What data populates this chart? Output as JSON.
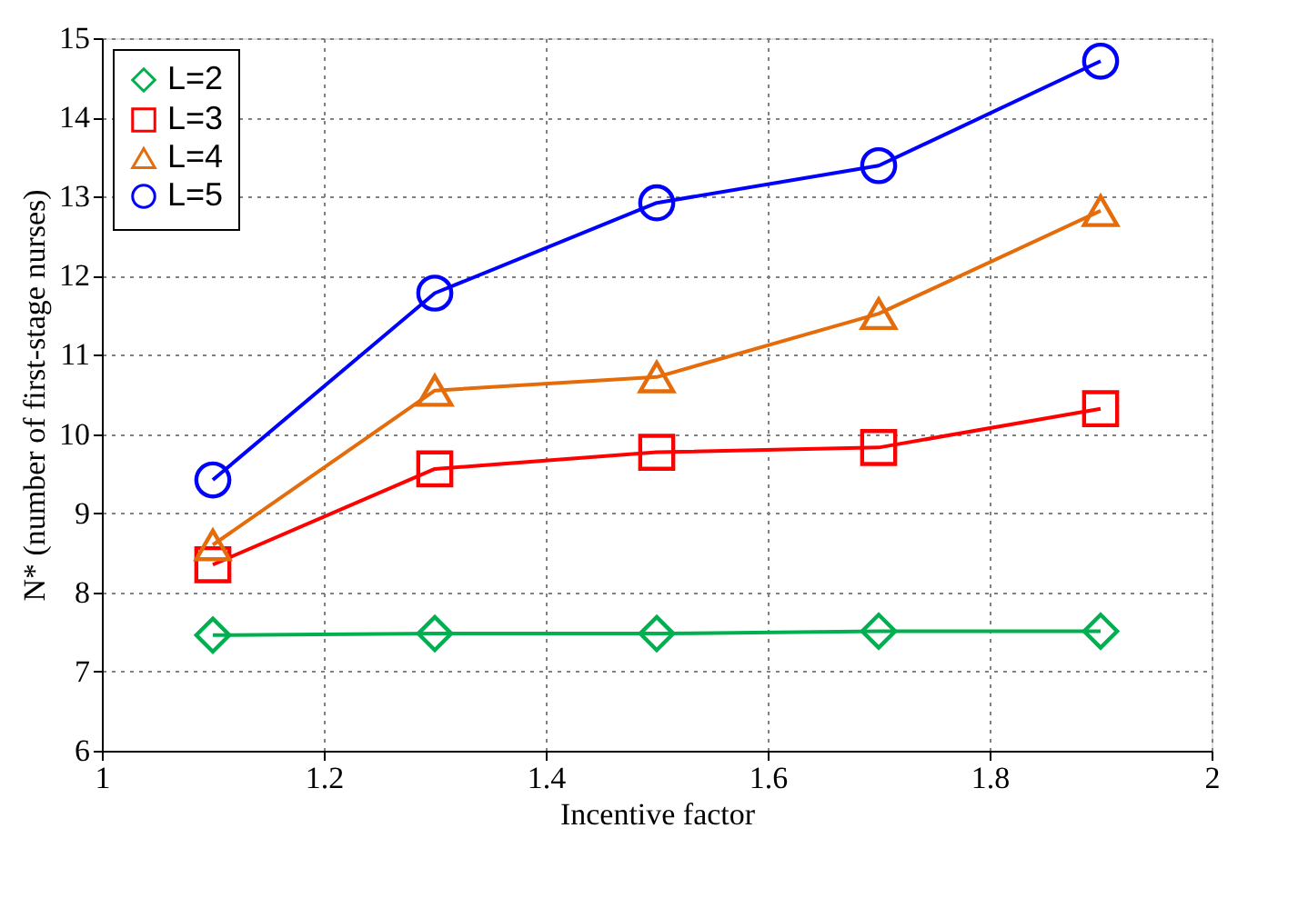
{
  "chart_data": {
    "type": "line",
    "xlabel": "Incentive factor",
    "ylabel": "N* (number of first-stage nurses)",
    "x": [
      1.1,
      1.3,
      1.5,
      1.7,
      1.9
    ],
    "series": [
      {
        "name": "L=2",
        "color": "#00b050",
        "marker": "diamond",
        "values": [
          7.46,
          7.48,
          7.48,
          7.51,
          7.51
        ]
      },
      {
        "name": "L=3",
        "color": "#ff0000",
        "marker": "square",
        "values": [
          8.35,
          9.56,
          9.77,
          9.83,
          10.32
        ]
      },
      {
        "name": "L=4",
        "color": "#e46c0a",
        "marker": "triangle",
        "values": [
          8.6,
          10.55,
          10.72,
          11.52,
          12.82
        ]
      },
      {
        "name": "L=5",
        "color": "#0000ff",
        "marker": "circle",
        "values": [
          9.42,
          11.78,
          12.92,
          13.39,
          14.71
        ]
      }
    ],
    "xlim": [
      1,
      2
    ],
    "xticks": [
      1,
      1.2,
      1.4,
      1.6,
      1.8,
      2
    ],
    "ylim": [
      6,
      15
    ],
    "yticks": [
      6,
      7,
      8,
      9,
      10,
      11,
      12,
      13,
      14,
      15
    ],
    "grid": true,
    "legend": "top left",
    "line_style": "solid"
  }
}
